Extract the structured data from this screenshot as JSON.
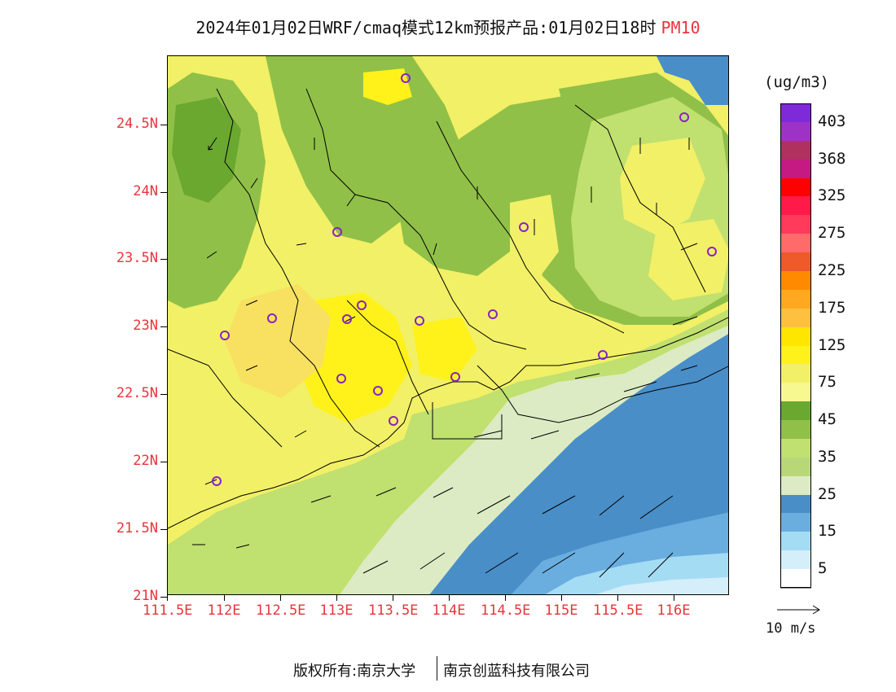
{
  "title": {
    "main": "2024年01月02日WRF/cmaq模式12km预报产品:01月02日18时",
    "pollutant": "PM10"
  },
  "axes": {
    "y_ticks": [
      "24.5N",
      "24N",
      "23.5N",
      "23N",
      "22.5N",
      "22N",
      "21.5N",
      "21N"
    ],
    "x_ticks": [
      "111.5E",
      "112E",
      "112.5E",
      "113E",
      "113.5E",
      "114E",
      "114.5E",
      "115E",
      "115.5E",
      "116E"
    ]
  },
  "colorbar": {
    "unit": "(ug/m3)",
    "colors": [
      "#7f2ad9",
      "#9e31c6",
      "#b0305f",
      "#c41a82",
      "#ff0000",
      "#ff1a4a",
      "#ff3a5a",
      "#ff6a6a",
      "#ee5a2a",
      "#ff8a00",
      "#ffa820",
      "#ffc040",
      "#ffe600",
      "#fff21a",
      "#f2f066",
      "#f8f890",
      "#6aa830",
      "#90c048",
      "#c0e070",
      "#b8d878",
      "#dcebc4",
      "#4a8ec8",
      "#6aaee0",
      "#a4dcf4",
      "#d4eefa",
      "#ffffff"
    ],
    "labels": [
      "403",
      "368",
      "325",
      "275",
      "225",
      "175",
      "125",
      "75",
      "45",
      "35",
      "25",
      "15",
      "5"
    ]
  },
  "wind_reference": {
    "label": "10 m/s"
  },
  "footer": {
    "left": "版权所有:南京大学",
    "right": "南京创蓝科技有限公司"
  },
  "stations_note": "",
  "colors": {
    "ocean_deep": "#4a8ec8",
    "ocean_mid": "#6aaee0",
    "ocean_light": "#a4dcf4",
    "coast": "#dcebc4",
    "green": "#90c048",
    "dark_green": "#6aa830",
    "yellow": "#f2f066",
    "bright_yellow": "#fff21a",
    "station": "#8a20c8",
    "axis_text": "#e8353a"
  }
}
